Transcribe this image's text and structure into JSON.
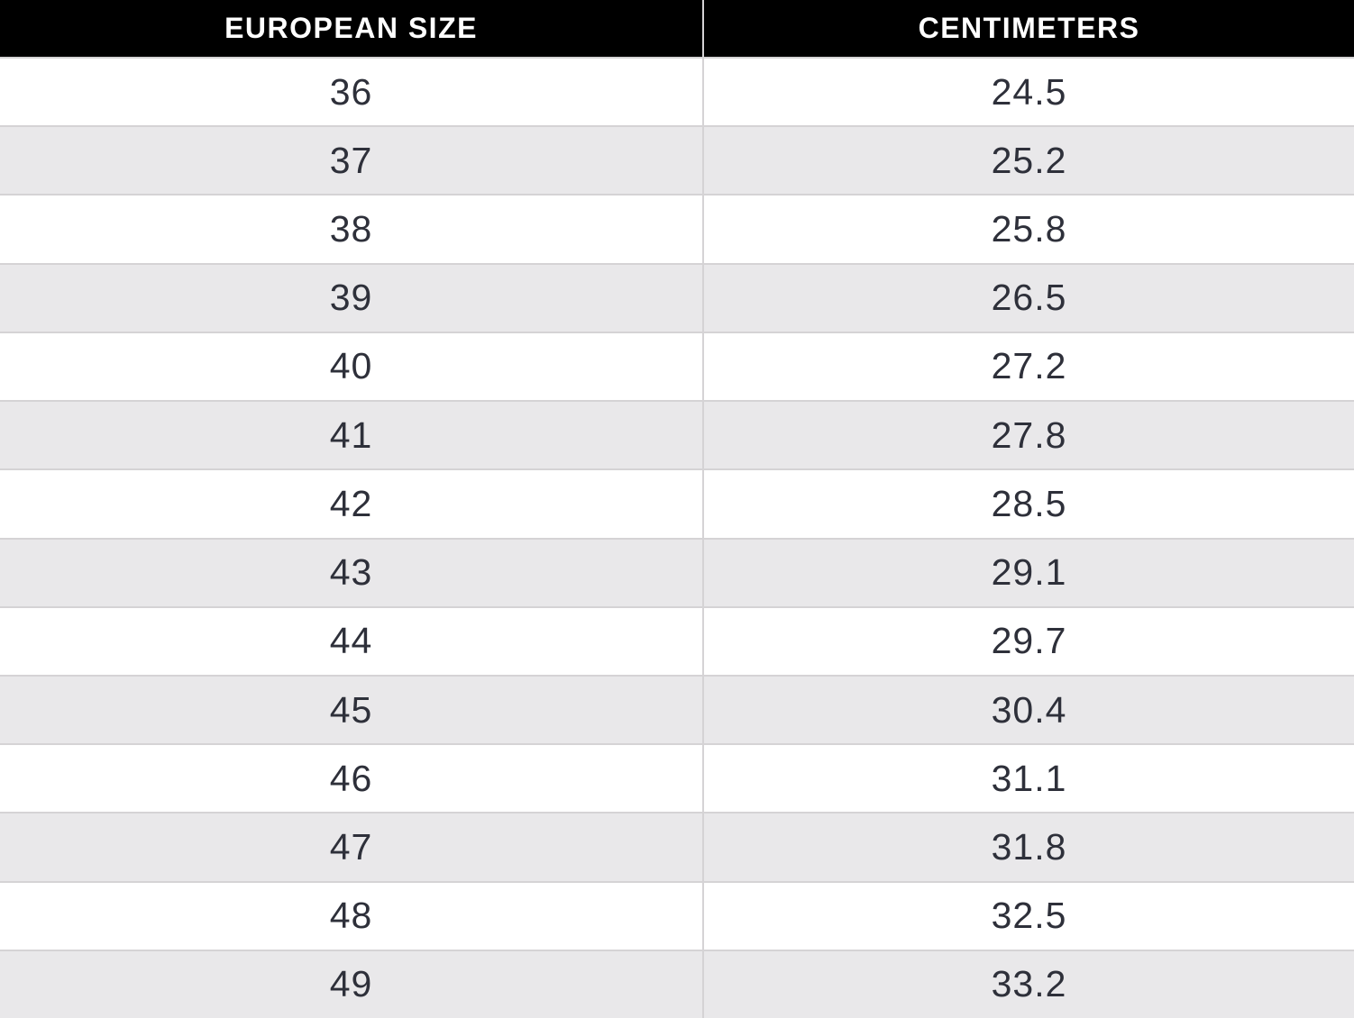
{
  "chart_data": {
    "type": "table",
    "columns": [
      "EUROPEAN SIZE",
      "CENTIMETERS"
    ],
    "rows": [
      [
        "36",
        "24.5"
      ],
      [
        "37",
        "25.2"
      ],
      [
        "38",
        "25.8"
      ],
      [
        "39",
        "26.5"
      ],
      [
        "40",
        "27.2"
      ],
      [
        "41",
        "27.8"
      ],
      [
        "42",
        "28.5"
      ],
      [
        "43",
        "29.1"
      ],
      [
        "44",
        "29.7"
      ],
      [
        "45",
        "30.4"
      ],
      [
        "46",
        "31.1"
      ],
      [
        "47",
        "31.8"
      ],
      [
        "48",
        "32.5"
      ],
      [
        "49",
        "33.2"
      ]
    ],
    "layout": {
      "grid": "on",
      "row_striping": "alternating white and light gray",
      "header_style": "black background, white bold uppercase text"
    }
  },
  "colors": {
    "header_bg": "#000000",
    "header_text": "#ffffff",
    "row_bg": "#ffffff",
    "row_alt_bg": "#e9e8ea",
    "border": "#d5d3d5",
    "text": "#2e303a"
  }
}
